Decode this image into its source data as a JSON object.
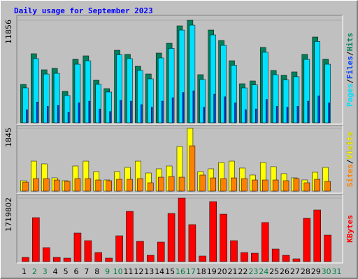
{
  "title": "Daily usage for September 2023",
  "legend_separator": "/",
  "chart_data": [
    {
      "type": "bar",
      "ylim": [
        0,
        11856
      ],
      "yticks": [
        11856
      ],
      "series": [
        {
          "name": "Hits",
          "color": "#00805c",
          "values": [
            4436,
            7985,
            6130,
            6291,
            3629,
            7339,
            7743,
            4920,
            3952,
            8388,
            7904,
            6533,
            5646,
            8065,
            9194,
            11211,
            11856,
            5565,
            10727,
            9517,
            7178,
            4517,
            4839,
            8710,
            6049,
            5484,
            5888,
            7904,
            9920,
            7339,
            null
          ]
        },
        {
          "name": "Files",
          "color": "#0040ff",
          "values": [
            1500,
            2400,
            1900,
            2000,
            1200,
            2300,
            2500,
            1600,
            1300,
            2600,
            2500,
            2100,
            1800,
            2500,
            2900,
            3500,
            3700,
            1800,
            3300,
            3000,
            2300,
            1500,
            1600,
            2700,
            1900,
            1800,
            1900,
            2500,
            3100,
            2300,
            null
          ]
        },
        {
          "name": "Pages",
          "color": "#00e0ff",
          "values": [
            4033,
            7420,
            5640,
            5720,
            3150,
            6770,
            7170,
            4440,
            3550,
            7870,
            7420,
            6050,
            5080,
            7500,
            8600,
            10720,
            11290,
            5000,
            10160,
            8950,
            6650,
            4030,
            4390,
            8150,
            5560,
            4960,
            5330,
            7330,
            9400,
            6770,
            null
          ]
        }
      ]
    },
    {
      "type": "bar",
      "ylim": [
        0,
        1845
      ],
      "yticks": [
        1845
      ],
      "series": [
        {
          "name": "Visits",
          "color": "#ffff00",
          "values": [
            307,
            881,
            800,
            390,
            307,
            738,
            881,
            574,
            328,
            574,
            697,
            881,
            533,
            656,
            738,
            1312,
            1845,
            574,
            656,
            841,
            881,
            677,
            472,
            841,
            718,
            513,
            390,
            328,
            554,
            697,
            null
          ]
        },
        {
          "name": "Sites",
          "color": "#ff8000",
          "values": [
            266,
            369,
            369,
            328,
            287,
            369,
            369,
            328,
            307,
            348,
            348,
            369,
            246,
            410,
            430,
            410,
            1332,
            472,
            389,
            369,
            389,
            369,
            328,
            328,
            328,
            307,
            369,
            246,
            348,
            287,
            null
          ]
        }
      ]
    },
    {
      "type": "bar",
      "ylim": [
        0,
        1719802
      ],
      "yticks": [
        1719802
      ],
      "categories": [
        "1",
        "2",
        "3",
        "4",
        "5",
        "6",
        "7",
        "8",
        "9",
        "10",
        "11",
        "12",
        "13",
        "14",
        "15",
        "16",
        "17",
        "18",
        "19",
        "20",
        "21",
        "22",
        "23",
        "24",
        "25",
        "26",
        "27",
        "28",
        "29",
        "30",
        "31"
      ],
      "category_colors": [
        "#000000",
        "#008040",
        "#008040",
        "#000000",
        "#000000",
        "#000000",
        "#000000",
        "#000000",
        "#008040",
        "#008040",
        "#000000",
        "#000000",
        "#000000",
        "#000000",
        "#000000",
        "#008040",
        "#008040",
        "#000000",
        "#000000",
        "#000000",
        "#000000",
        "#000000",
        "#008040",
        "#008040",
        "#000000",
        "#000000",
        "#000000",
        "#000000",
        "#000000",
        "#008040",
        "#008040"
      ],
      "series": [
        {
          "name": "KBytes",
          "color": "#ff0000",
          "values": [
            113393,
            1190632,
            378000,
            113393,
            94000,
            774800,
            567000,
            245700,
            94500,
            699200,
            1360700,
            548000,
            170000,
            529000,
            1304000,
            1719802,
            1001600,
            151200,
            1625000,
            1285000,
            567000,
            245700,
            226800,
            1058300,
            340000,
            170000,
            75600,
            1171700,
            1398500,
            718100,
            null
          ]
        }
      ]
    }
  ]
}
